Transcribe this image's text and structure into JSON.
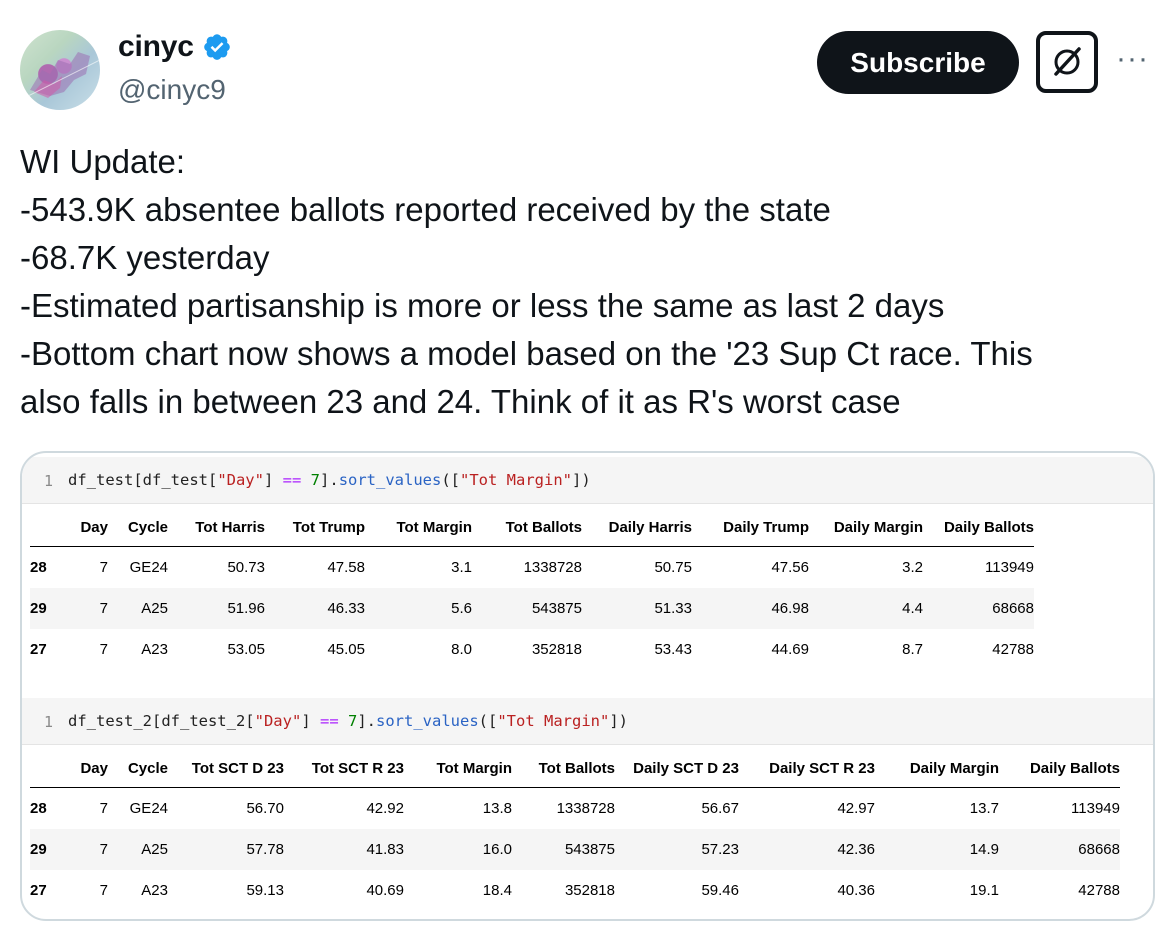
{
  "author": {
    "display_name": "cinyc",
    "handle": "@cinyc9",
    "verified": true
  },
  "actions": {
    "subscribe_label": "Subscribe",
    "grok_icon": "grok-icon",
    "more_label": "···"
  },
  "tweet": {
    "lines": [
      "WI Update:",
      "-543.9K absentee ballots reported received by the state",
      "-68.7K yesterday",
      "-Estimated partisanship is more or less the same as last 2 days",
      "-Bottom chart now shows a model based on the '23 Sup Ct race. This",
      "also falls in between 23 and 24. Think of it as R's worst case"
    ]
  },
  "notebook": {
    "cell1": {
      "line_number": "1",
      "code_parts": [
        "df_test[df_test[",
        "\"Day\"",
        "] ",
        "==",
        " ",
        "7",
        "].",
        "sort_values",
        "([",
        "\"Tot Margin\"",
        "])"
      ],
      "columns": [
        "Day",
        "Cycle",
        "Tot Harris",
        "Tot Trump",
        "Tot Margin",
        "Tot Ballots",
        "Daily Harris",
        "Daily Trump",
        "Daily Margin",
        "Daily Ballots"
      ],
      "rows": [
        {
          "index": "28",
          "cells": [
            "7",
            "GE24",
            "50.73",
            "47.58",
            "3.1",
            "1338728",
            "50.75",
            "47.56",
            "3.2",
            "113949"
          ]
        },
        {
          "index": "29",
          "cells": [
            "7",
            "A25",
            "51.96",
            "46.33",
            "5.6",
            "543875",
            "51.33",
            "46.98",
            "4.4",
            "68668"
          ]
        },
        {
          "index": "27",
          "cells": [
            "7",
            "A23",
            "53.05",
            "45.05",
            "8.0",
            "352818",
            "53.43",
            "44.69",
            "8.7",
            "42788"
          ]
        }
      ]
    },
    "cell2": {
      "line_number": "1",
      "code_parts": [
        "df_test_2[df_test_2[",
        "\"Day\"",
        "] ",
        "==",
        " ",
        "7",
        "].",
        "sort_values",
        "([",
        "\"Tot Margin\"",
        "])"
      ],
      "columns": [
        "Day",
        "Cycle",
        "Tot SCT D 23",
        "Tot SCT R 23",
        "Tot Margin",
        "Tot Ballots",
        "Daily SCT D 23",
        "Daily SCT R 23",
        "Daily Margin",
        "Daily Ballots"
      ],
      "rows": [
        {
          "index": "28",
          "cells": [
            "7",
            "GE24",
            "56.70",
            "42.92",
            "13.8",
            "1338728",
            "56.67",
            "42.97",
            "13.7",
            "113949"
          ]
        },
        {
          "index": "29",
          "cells": [
            "7",
            "A25",
            "57.78",
            "41.83",
            "16.0",
            "543875",
            "57.23",
            "42.36",
            "14.9",
            "68668"
          ]
        },
        {
          "index": "27",
          "cells": [
            "7",
            "A23",
            "59.13",
            "40.69",
            "18.4",
            "352818",
            "59.46",
            "40.36",
            "19.1",
            "42788"
          ]
        }
      ]
    }
  }
}
